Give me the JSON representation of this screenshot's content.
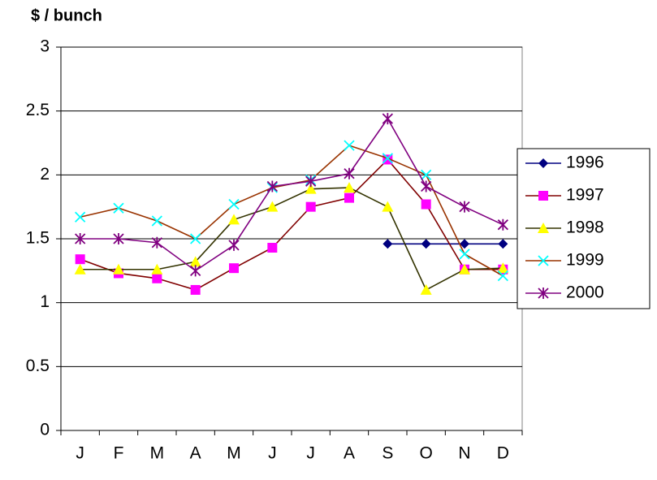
{
  "chart_data": {
    "type": "line",
    "y_label": "$ / bunch",
    "categories": [
      "J",
      "F",
      "M",
      "A",
      "M",
      "J",
      "J",
      "A",
      "S",
      "O",
      "N",
      "D"
    ],
    "series": [
      {
        "name": "1996",
        "color": "#000080",
        "marker_color": "#000080",
        "marker": "diamond",
        "values": [
          null,
          null,
          null,
          null,
          null,
          null,
          null,
          null,
          1.46,
          1.46,
          1.46,
          1.46
        ]
      },
      {
        "name": "1997",
        "color": "#800000",
        "marker_color": "#ff00ff",
        "marker": "square",
        "values": [
          1.34,
          1.23,
          1.19,
          1.1,
          1.27,
          1.43,
          1.75,
          1.82,
          2.12,
          1.77,
          1.26,
          1.26
        ]
      },
      {
        "name": "1998",
        "color": "#333300",
        "marker_color": "#ffff00",
        "marker": "triangle",
        "values": [
          1.26,
          1.26,
          1.26,
          1.32,
          1.65,
          1.75,
          1.89,
          1.9,
          1.75,
          1.1,
          1.26,
          1.27
        ]
      },
      {
        "name": "1999",
        "color": "#993300",
        "marker_color": "#00ffff",
        "marker": "x",
        "values": [
          1.67,
          1.74,
          1.64,
          1.5,
          1.77,
          1.9,
          1.96,
          2.23,
          2.13,
          2.0,
          1.38,
          1.21
        ]
      },
      {
        "name": "2000",
        "color": "#800080",
        "marker_color": "#800080",
        "marker": "asterisk",
        "values": [
          1.5,
          1.5,
          1.47,
          1.25,
          1.45,
          1.91,
          1.95,
          2.01,
          2.44,
          1.91,
          1.75,
          1.61
        ]
      }
    ],
    "ylim": [
      0,
      3
    ],
    "yticks": [
      0,
      0.5,
      1,
      1.5,
      2,
      2.5,
      3
    ],
    "grid": true,
    "legend": "right"
  }
}
